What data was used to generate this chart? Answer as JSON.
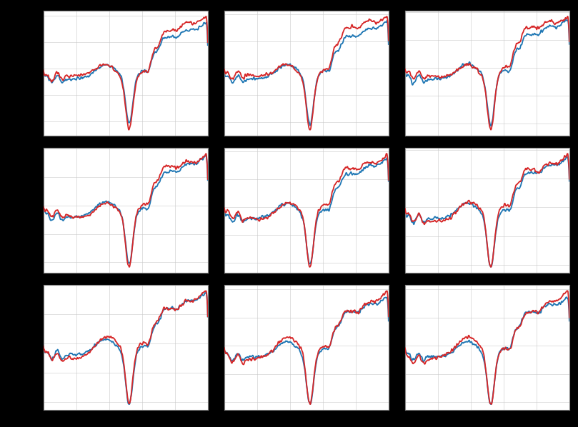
{
  "nrows": 3,
  "ncols": 3,
  "background_color": "#000000",
  "subplot_bg": "#ffffff",
  "color1": "#1f77b4",
  "color2": "#d62728",
  "linewidth": 1.3,
  "grid_color": "#c8c8c8",
  "grid_linewidth": 0.5,
  "figsize": [
    8.09,
    5.98
  ],
  "dpi": 100,
  "n_points": 600
}
